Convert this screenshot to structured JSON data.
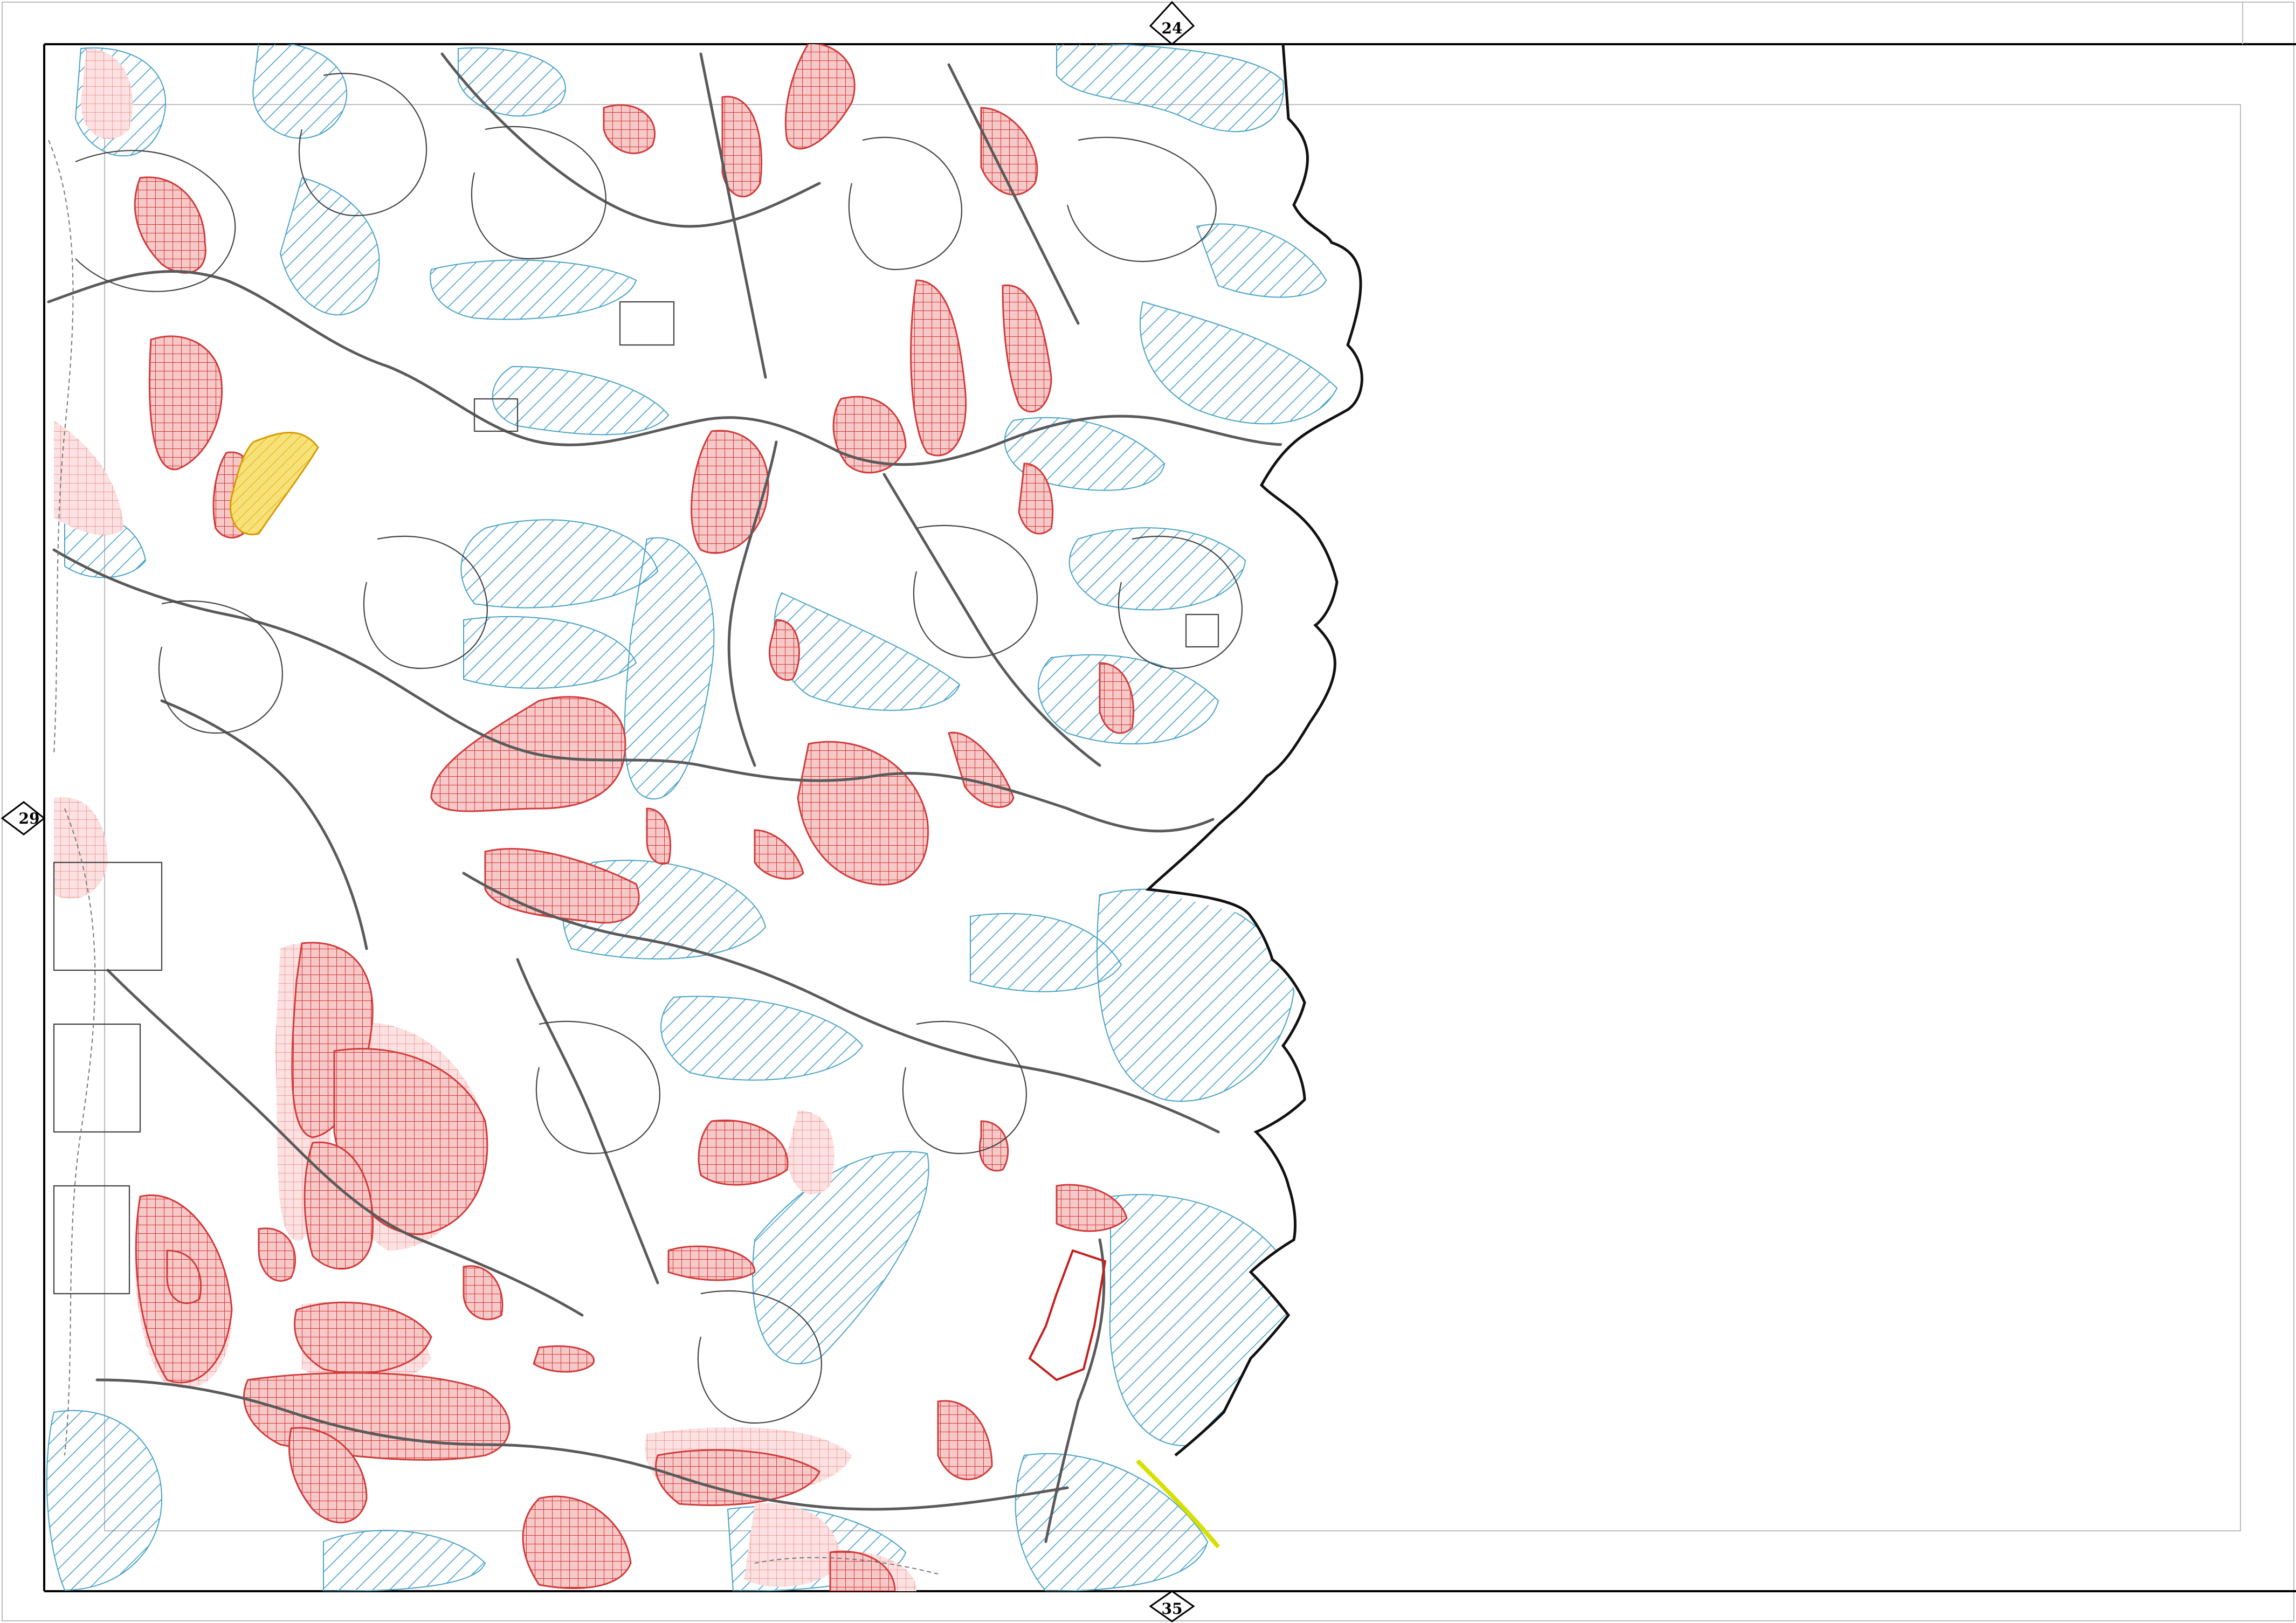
{
  "sheet_markers": {
    "top": "24",
    "left": "29",
    "bottom": "35"
  },
  "legend_colors": {
    "blue_hatch": "#3a9ccc",
    "red_grid": "#d93434",
    "pink_grid": "#f2a3a3",
    "yellow_fill": "#f5d640",
    "boundary": "#000000",
    "road": "#5a5a5a"
  }
}
